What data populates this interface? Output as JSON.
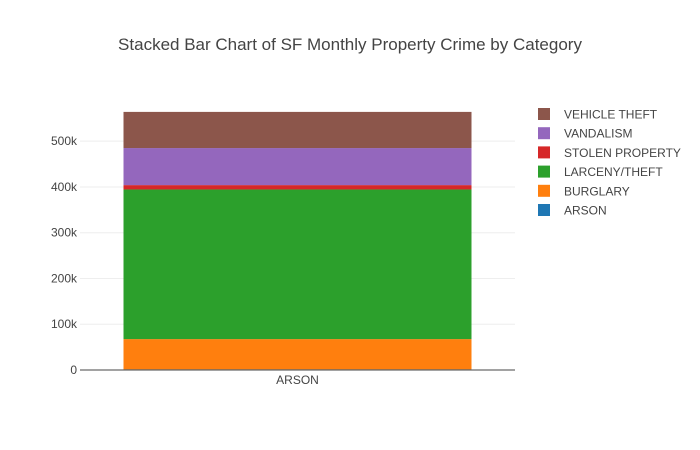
{
  "chart_data": {
    "type": "bar",
    "stacked": true,
    "title": "Stacked Bar Chart of SF Monthly Property Crime by Category",
    "xlabel": "",
    "ylabel": "",
    "categories": [
      "ARSON"
    ],
    "ylim": [
      0,
      590000
    ],
    "yticks": [
      0,
      100000,
      200000,
      300000,
      400000,
      500000
    ],
    "ytick_labels": [
      "0",
      "100k",
      "200k",
      "300k",
      "400k",
      "500k"
    ],
    "grid": true,
    "legend_position": "right",
    "series": [
      {
        "name": "ARSON",
        "color": "#1f77b4",
        "values": [
          1500
        ]
      },
      {
        "name": "BURGLARY",
        "color": "#ff7f0e",
        "values": [
          66000
        ]
      },
      {
        "name": "LARCENY/THEFT",
        "color": "#2ca02c",
        "values": [
          327000
        ]
      },
      {
        "name": "STOLEN PROPERTY",
        "color": "#d62728",
        "values": [
          9500
        ]
      },
      {
        "name": "VANDALISM",
        "color": "#9467bd",
        "values": [
          81000
        ]
      },
      {
        "name": "VEHICLE THEFT",
        "color": "#8c564b",
        "values": [
          79000
        ]
      }
    ]
  }
}
